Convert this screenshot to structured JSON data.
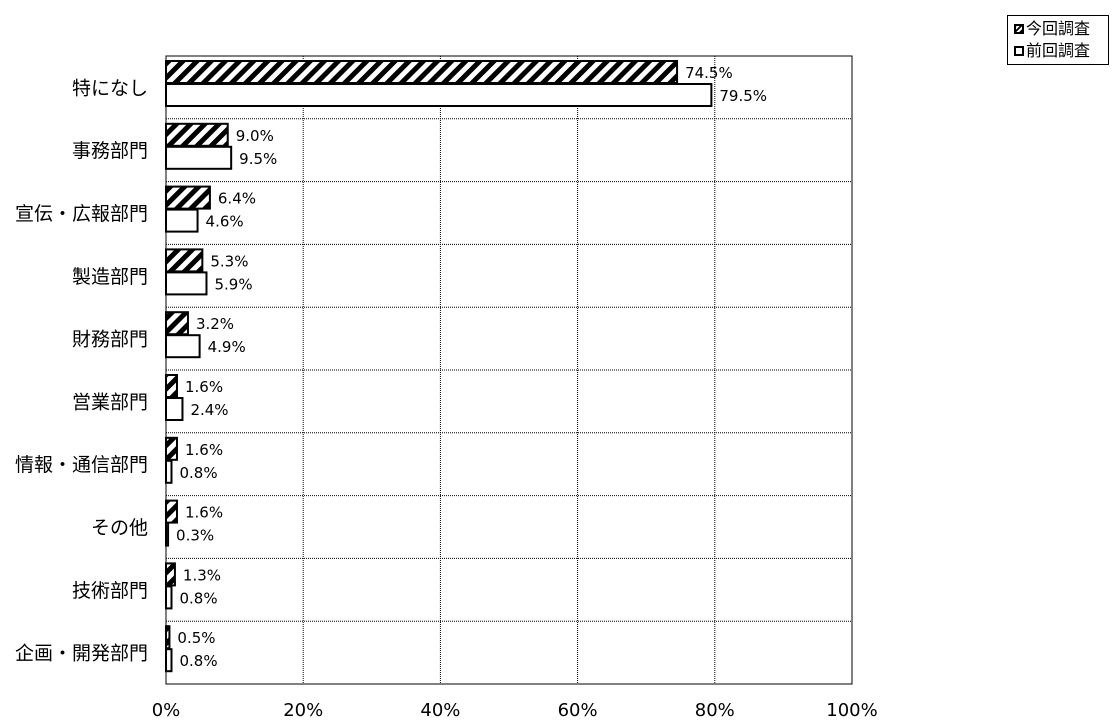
{
  "chart_data": {
    "type": "bar",
    "orientation": "horizontal",
    "categories": [
      "特になし",
      "事務部門",
      "宣伝・広報部門",
      "製造部門",
      "財務部門",
      "営業部門",
      "情報・通信部門",
      "その他",
      "技術部門",
      "企画・開発部門"
    ],
    "series": [
      {
        "name": "今回調査",
        "values": [
          74.5,
          9.0,
          6.4,
          5.3,
          3.2,
          1.6,
          1.6,
          1.6,
          1.3,
          0.5
        ],
        "labels": [
          "74.5%",
          "9.0%",
          "6.4%",
          "5.3%",
          "3.2%",
          "1.6%",
          "1.6%",
          "1.6%",
          "1.3%",
          "0.5%"
        ],
        "fill": "hatched"
      },
      {
        "name": "前回調査",
        "values": [
          79.5,
          9.5,
          4.6,
          5.9,
          4.9,
          2.4,
          0.8,
          0.3,
          0.8,
          0.8
        ],
        "labels": [
          "79.5%",
          "9.5%",
          "4.6%",
          "5.9%",
          "4.9%",
          "2.4%",
          "0.8%",
          "0.3%",
          "0.8%",
          "0.8%"
        ],
        "fill": "white"
      }
    ],
    "x_ticks": [
      "0%",
      "20%",
      "40%",
      "60%",
      "80%",
      "100%"
    ],
    "xlim": [
      0,
      100
    ],
    "grid": true,
    "legend_position": "top-right",
    "colors": {
      "bar_stroke": "#000000",
      "grid": "#000000",
      "background": "#ffffff"
    }
  }
}
